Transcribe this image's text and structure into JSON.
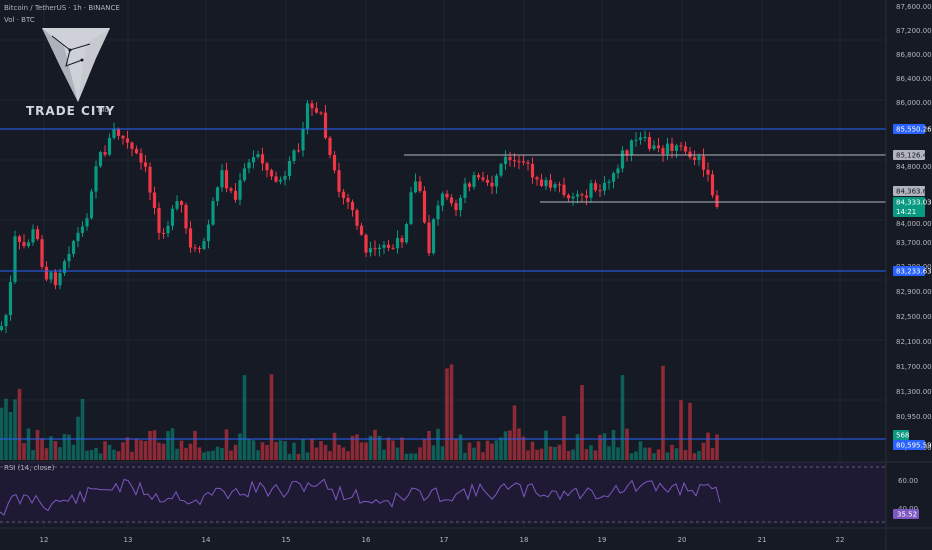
{
  "header": {
    "symbol": "Bitcoin / TetherUS · 1h · BINANCE",
    "volume_label": "Vol · BTC"
  },
  "brand": {
    "name": "TRADE CITY",
    "suffix": "PRO"
  },
  "rsi": {
    "label": "RSI (14, close)",
    "ticks": [
      "60.00",
      "40.00"
    ],
    "current": "35.52",
    "color": "#7e57c2"
  },
  "price_axis": {
    "ticks": [
      "87,600.00",
      "87,200.00",
      "86,800.00",
      "86,400.00",
      "86,000.00",
      "84,800.00",
      "84,000.00",
      "83,700.00",
      "83,300.00",
      "82,900.00",
      "82,500.00",
      "82,100.00",
      "81,700.00",
      "81,300.00",
      "80,950.00",
      "80,600.00"
    ],
    "badges": [
      {
        "text": "85,550.26",
        "bg": "#2962ff",
        "fg": "#ffffff"
      },
      {
        "text": "85,126.45",
        "bg": "#b2b5be",
        "fg": "#131722"
      },
      {
        "text": "84,363.62",
        "bg": "#b2b5be",
        "fg": "#131722"
      },
      {
        "text": "84,333.03",
        "bg": "#089981",
        "fg": "#ffffff"
      },
      {
        "text": "14:21",
        "bg": "#089981",
        "fg": "#ffffff"
      },
      {
        "text": "83,233.63",
        "bg": "#2962ff",
        "fg": "#ffffff"
      },
      {
        "text": "568",
        "bg": "#089981",
        "fg": "#ffffff"
      },
      {
        "text": "80,595.59",
        "bg": "#2962ff",
        "fg": "#ffffff"
      }
    ]
  },
  "time_axis": {
    "ticks": [
      "12",
      "13",
      "14",
      "15",
      "16",
      "17",
      "18",
      "19",
      "20",
      "21",
      "22"
    ]
  },
  "colors": {
    "up": "#089981",
    "down": "#f23645",
    "level_line": "#2962ff",
    "sr_line": "#b2b5be",
    "background": "#161a25"
  },
  "chart_data": {
    "type": "candlestick",
    "title": "Bitcoin / TetherUS · 1h · BINANCE",
    "interval": "1h",
    "x_ticks": [
      "12",
      "13",
      "14",
      "15",
      "16",
      "17",
      "18",
      "19",
      "20",
      "21",
      "22"
    ],
    "ylim": [
      80300,
      87700
    ],
    "horizontal_levels": [
      85550.26,
      83233.63,
      80595.59
    ],
    "trend_levels": [
      85126.45,
      84363.62
    ],
    "last_price": 84333.03,
    "countdown": "14:21",
    "current_volume": 568,
    "rsi_current": 35.52,
    "rsi_levels": [
      70,
      30
    ]
  }
}
